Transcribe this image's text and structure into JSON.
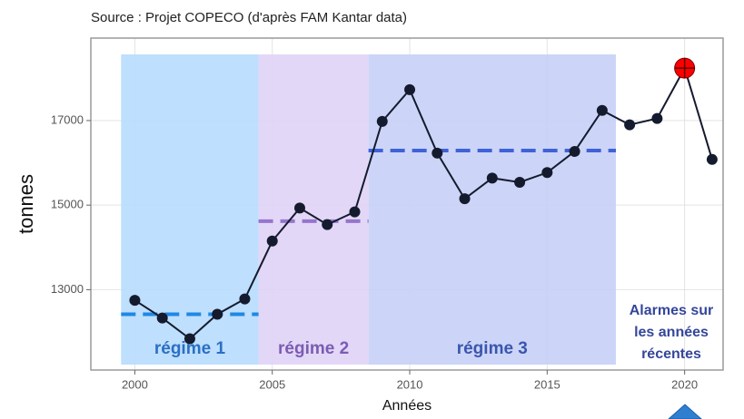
{
  "chart_data": {
    "type": "line",
    "title": "Source : Projet COPECO (d'après FAM Kantar data)",
    "x_label": "Années",
    "y_label": "tonnes",
    "x": [
      2000,
      2001,
      2002,
      2003,
      2004,
      2005,
      2006,
      2007,
      2008,
      2009,
      2010,
      2011,
      2012,
      2013,
      2014,
      2015,
      2016,
      2017,
      2018,
      2019,
      2020,
      2021
    ],
    "series": [
      {
        "color": "#141b2e",
        "values": [
          12750,
          12330,
          11840,
          12420,
          12780,
          14150,
          14930,
          14540,
          14840,
          16980,
          17730,
          16230,
          15150,
          15640,
          15540,
          15770,
          16270,
          17240,
          16900,
          17050,
          18240,
          16080
        ]
      }
    ],
    "highlight": {
      "x": 2020,
      "color": "#ff0000"
    },
    "regimes": [
      {
        "label": "régime 1",
        "start": 1999.5,
        "end": 2004.5,
        "mean": 12420,
        "fill": "#b7dcfd",
        "color": "#1e88e5",
        "text_color": "#2b6fc4"
      },
      {
        "label": "régime 2",
        "start": 2004.5,
        "end": 2008.5,
        "mean": 14620,
        "fill": "#e0d3f6",
        "color": "#9575cd",
        "text_color": "#7b5cb3"
      },
      {
        "label": "régime 3",
        "start": 2008.5,
        "end": 2017.5,
        "mean": 16290,
        "fill": "#c6d0f6",
        "color": "#3f62d8",
        "text_color": "#3a56ae"
      }
    ],
    "annotation": {
      "lines": [
        "Alarmes sur",
        "les années",
        "récentes"
      ],
      "color": "#34469a"
    },
    "xlim": [
      1998.4,
      2021.4
    ],
    "ylim": [
      11100,
      18950
    ],
    "xticks": [
      2000,
      2005,
      2010,
      2015,
      2020
    ],
    "yticks": [
      13000,
      15000,
      17000
    ],
    "grid": true
  }
}
